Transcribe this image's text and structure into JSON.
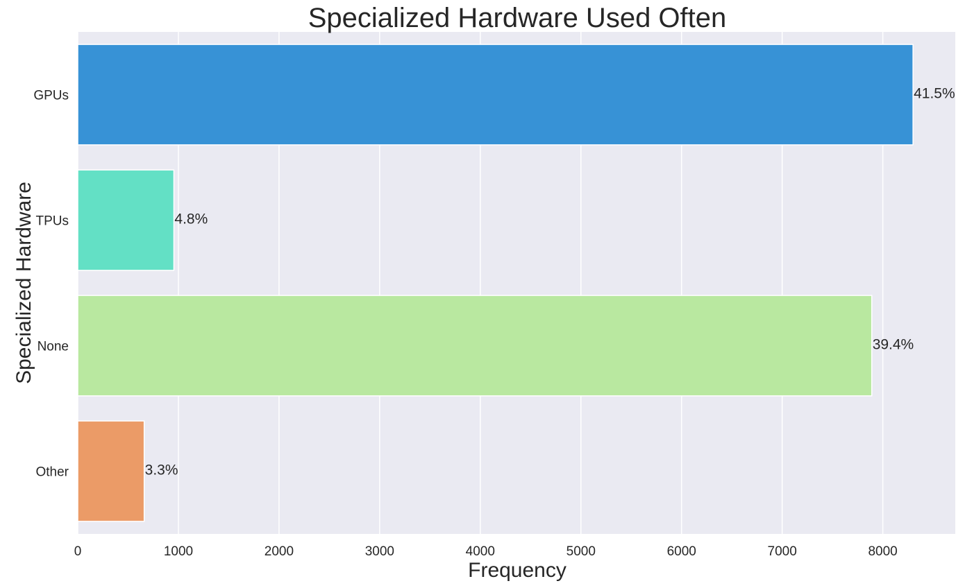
{
  "chart_data": {
    "type": "bar",
    "orientation": "horizontal",
    "title": "Specialized Hardware Used Often",
    "xlabel": "Frequency",
    "ylabel": "Specialized Hardware",
    "categories": [
      "GPUs",
      "TPUs",
      "None",
      "Other"
    ],
    "values": [
      8300,
      955,
      7890,
      660
    ],
    "data_labels": [
      "41.5%",
      "4.8%",
      "39.4%",
      "3.3%"
    ],
    "colors": [
      "#3792d6",
      "#63e0c5",
      "#b9e8a0",
      "#eb9b67"
    ],
    "xlim": [
      0,
      8720
    ],
    "xticks": [
      0,
      1000,
      2000,
      3000,
      4000,
      5000,
      6000,
      7000,
      8000
    ],
    "grid": true,
    "background": "#eaeaf2",
    "legend": "none"
  }
}
